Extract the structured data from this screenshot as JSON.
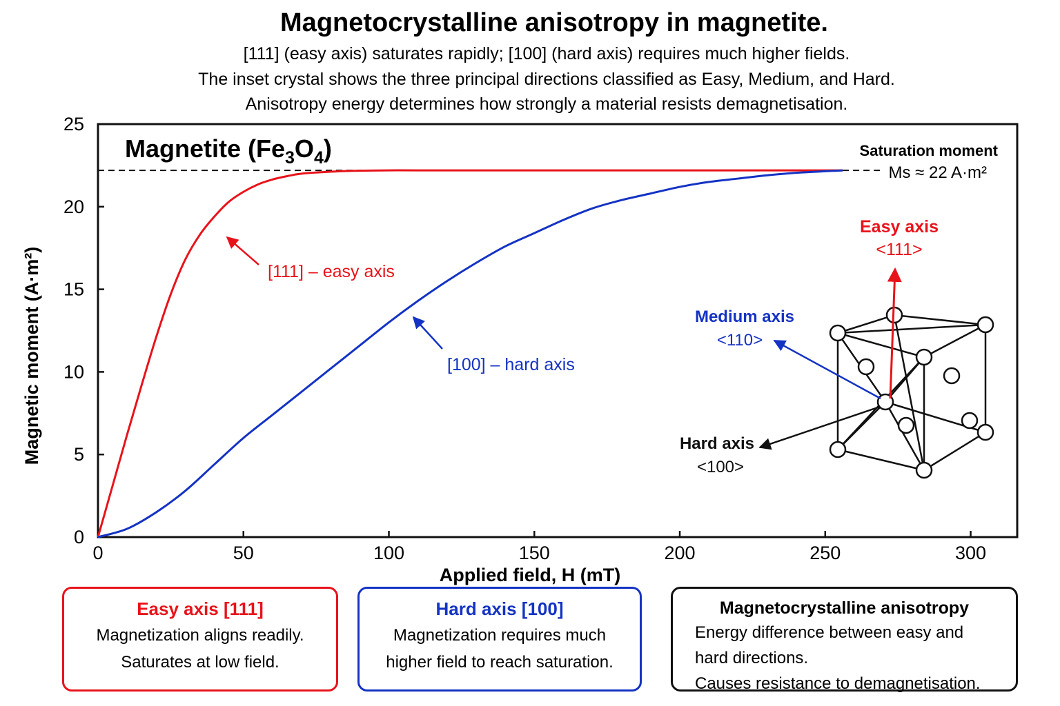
{
  "title": "Magnetocrystalline anisotropy in magnetite.",
  "subtitle_lines": [
    "[111] (easy axis) saturates rapidly; [100] (hard axis) requires much higher fields.",
    "The inset crystal shows the three principal directions classified as Easy, Medium, and Hard.",
    "Anisotropy energy determines how strongly a material resists demagnetisation."
  ],
  "chart_data": {
    "type": "line",
    "inner_title": "Magnetite (Fe3O4)",
    "xlabel": "Applied field, H (mT)",
    "ylabel": "Magnetic moment (A·m²)",
    "xlim": [
      0,
      316
    ],
    "ylim": [
      0,
      25
    ],
    "xticks": [
      0,
      50,
      100,
      150,
      200,
      250,
      300
    ],
    "yticks": [
      0,
      5,
      10,
      15,
      20,
      25
    ],
    "grid": false,
    "series": [
      {
        "name": "[111] – easy axis",
        "color": "#e8131a",
        "x": [
          0,
          5,
          10,
          15,
          20,
          25,
          30,
          35,
          40,
          45,
          50,
          55,
          60,
          65,
          70,
          80,
          90,
          100,
          110,
          130,
          160,
          200,
          256
        ],
        "y": [
          0,
          3.1,
          6.2,
          9.2,
          12.1,
          14.7,
          16.8,
          18.3,
          19.4,
          20.3,
          20.9,
          21.35,
          21.65,
          21.85,
          22.0,
          22.12,
          22.18,
          22.2,
          22.2,
          22.2,
          22.2,
          22.2,
          22.2
        ]
      },
      {
        "name": "[100] – hard axis",
        "color": "#1433c4",
        "x": [
          0,
          10,
          20,
          30,
          40,
          50,
          60,
          70,
          80,
          90,
          100,
          110,
          120,
          130,
          140,
          150,
          160,
          170,
          180,
          190,
          200,
          210,
          220,
          230,
          240,
          256
        ],
        "y": [
          0,
          0.5,
          1.5,
          2.8,
          4.4,
          6.0,
          7.4,
          8.8,
          10.2,
          11.6,
          13.0,
          14.3,
          15.5,
          16.6,
          17.6,
          18.4,
          19.2,
          19.9,
          20.4,
          20.8,
          21.2,
          21.5,
          21.7,
          21.9,
          22.05,
          22.2
        ]
      }
    ],
    "annotations": {
      "easy_curve_label": "[111] – easy axis",
      "hard_curve_label": "[100] – hard axis",
      "saturation_label": "Saturation moment",
      "saturation_value_label": "Ms ≈ 22 A·m²",
      "saturation_value": 22.2
    },
    "inset": {
      "easy_axis": {
        "label": "Easy axis",
        "direction": "<111>",
        "color": "#e8131a"
      },
      "medium_axis": {
        "label": "Medium axis",
        "direction": "<110>",
        "color": "#1433c4"
      },
      "hard_axis": {
        "label": "Hard axis",
        "direction": "<100>",
        "color": "#111111"
      }
    }
  },
  "info_boxes": {
    "easy": {
      "title": "Easy axis [111]",
      "lines": [
        "Magnetization aligns readily.",
        "Saturates at low field."
      ],
      "color": "#e8131a"
    },
    "hard": {
      "title": "Hard axis [100]",
      "lines": [
        "Magnetization requires much",
        "higher field to reach saturation."
      ],
      "color": "#1433c4"
    },
    "aniso": {
      "title": "Magnetocrystalline anisotropy",
      "lines": [
        "Energy difference between easy and",
        "hard directions.",
        "Causes resistance to demagnetisation."
      ]
    }
  }
}
